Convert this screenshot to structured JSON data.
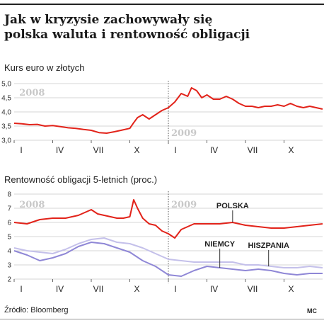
{
  "title": {
    "line1": "Jak w kryzysie zachowywały się",
    "line2": "polska waluta i rentowność obligacji"
  },
  "source": "Źródło: Bloomberg",
  "credit": "MC",
  "colors": {
    "polska": "#e2231a",
    "niemcy": "#8f87d6",
    "hiszpania": "#c4c0ea",
    "grid": "#d6d6d6",
    "year_label": "#c8c8c8"
  },
  "chart_data": [
    {
      "type": "line",
      "title": "Kurs euro w złotych",
      "x_ticks": [
        "I",
        "IV",
        "VII",
        "X",
        "I",
        "IV",
        "VII",
        "X"
      ],
      "x_range": [
        "2008-01",
        "2009-12"
      ],
      "year_labels": [
        "2008",
        "2009"
      ],
      "ylim": [
        3.0,
        5.0
      ],
      "yticks": [
        "3,0",
        "3,5",
        "4,0",
        "4,5",
        "5,0"
      ],
      "grid": true,
      "series": [
        {
          "name": "",
          "color": "#e2231a",
          "points": [
            [
              0,
              3.6
            ],
            [
              0.6,
              3.58
            ],
            [
              1.2,
              3.55
            ],
            [
              1.8,
              3.56
            ],
            [
              2.4,
              3.5
            ],
            [
              3.0,
              3.52
            ],
            [
              3.6,
              3.48
            ],
            [
              4.2,
              3.44
            ],
            [
              4.8,
              3.42
            ],
            [
              5.4,
              3.38
            ],
            [
              6.0,
              3.35
            ],
            [
              6.6,
              3.27
            ],
            [
              7.2,
              3.25
            ],
            [
              7.8,
              3.3
            ],
            [
              8.4,
              3.36
            ],
            [
              9.0,
              3.42
            ],
            [
              9.3,
              3.62
            ],
            [
              9.6,
              3.8
            ],
            [
              10.0,
              3.9
            ],
            [
              10.5,
              3.75
            ],
            [
              11.0,
              3.9
            ],
            [
              11.5,
              4.05
            ],
            [
              12.0,
              4.15
            ],
            [
              12.5,
              4.35
            ],
            [
              13.0,
              4.65
            ],
            [
              13.5,
              4.55
            ],
            [
              13.8,
              4.85
            ],
            [
              14.2,
              4.75
            ],
            [
              14.6,
              4.5
            ],
            [
              15.0,
              4.6
            ],
            [
              15.5,
              4.45
            ],
            [
              16.0,
              4.45
            ],
            [
              16.5,
              4.55
            ],
            [
              17.0,
              4.45
            ],
            [
              17.5,
              4.3
            ],
            [
              18.0,
              4.2
            ],
            [
              18.5,
              4.2
            ],
            [
              19.0,
              4.15
            ],
            [
              19.5,
              4.2
            ],
            [
              20.0,
              4.2
            ],
            [
              20.5,
              4.25
            ],
            [
              21.0,
              4.2
            ],
            [
              21.5,
              4.3
            ],
            [
              22.0,
              4.2
            ],
            [
              22.5,
              4.15
            ],
            [
              23.0,
              4.2
            ],
            [
              23.5,
              4.15
            ],
            [
              24.0,
              4.1
            ]
          ]
        }
      ]
    },
    {
      "type": "line",
      "title": "Rentowność obligacji 5-letnich (proc.)",
      "x_ticks": [
        "I",
        "IV",
        "VII",
        "X",
        "I",
        "IV",
        "VII",
        "X"
      ],
      "x_range": [
        "2008-01",
        "2009-12"
      ],
      "year_labels": [
        "2008",
        "2009"
      ],
      "ylim": [
        2,
        8
      ],
      "yticks": [
        "2",
        "3",
        "4",
        "5",
        "6",
        "7",
        "8"
      ],
      "grid": true,
      "series": [
        {
          "name": "POLSKA",
          "color": "#e2231a",
          "points": [
            [
              0,
              6.0
            ],
            [
              1.0,
              5.9
            ],
            [
              2.0,
              6.2
            ],
            [
              3.0,
              6.3
            ],
            [
              4.0,
              6.3
            ],
            [
              5.0,
              6.5
            ],
            [
              6.0,
              6.9
            ],
            [
              6.5,
              6.6
            ],
            [
              7.0,
              6.5
            ],
            [
              8.0,
              6.3
            ],
            [
              8.5,
              6.3
            ],
            [
              9.0,
              6.4
            ],
            [
              9.3,
              7.6
            ],
            [
              9.6,
              7.0
            ],
            [
              10.0,
              6.3
            ],
            [
              10.5,
              5.9
            ],
            [
              11.0,
              5.8
            ],
            [
              11.5,
              5.4
            ],
            [
              12.0,
              5.2
            ],
            [
              12.5,
              4.9
            ],
            [
              13.0,
              5.5
            ],
            [
              13.5,
              5.7
            ],
            [
              14.0,
              5.9
            ],
            [
              15.0,
              5.9
            ],
            [
              16.0,
              5.9
            ],
            [
              17.0,
              6.0
            ],
            [
              18.0,
              5.8
            ],
            [
              19.0,
              5.7
            ],
            [
              20.0,
              5.6
            ],
            [
              21.0,
              5.6
            ],
            [
              22.0,
              5.7
            ],
            [
              23.0,
              5.8
            ],
            [
              24.0,
              5.9
            ]
          ]
        },
        {
          "name": "HISZPANIA",
          "color": "#c4c0ea",
          "points": [
            [
              0,
              4.2
            ],
            [
              1.0,
              4.0
            ],
            [
              2.0,
              3.9
            ],
            [
              3.0,
              3.8
            ],
            [
              4.0,
              4.1
            ],
            [
              5.0,
              4.5
            ],
            [
              6.0,
              4.8
            ],
            [
              7.0,
              4.9
            ],
            [
              8.0,
              4.6
            ],
            [
              9.0,
              4.5
            ],
            [
              10.0,
              4.2
            ],
            [
              11.0,
              3.8
            ],
            [
              12.0,
              3.4
            ],
            [
              13.0,
              3.3
            ],
            [
              14.0,
              3.2
            ],
            [
              15.0,
              3.2
            ],
            [
              16.0,
              3.2
            ],
            [
              17.0,
              3.2
            ],
            [
              18.0,
              3.0
            ],
            [
              19.0,
              3.0
            ],
            [
              20.0,
              2.9
            ],
            [
              21.0,
              2.8
            ],
            [
              22.0,
              2.8
            ],
            [
              23.0,
              2.9
            ],
            [
              24.0,
              2.8
            ]
          ]
        },
        {
          "name": "NIEMCY",
          "color": "#8f87d6",
          "points": [
            [
              0,
              4.0
            ],
            [
              1.0,
              3.7
            ],
            [
              2.0,
              3.3
            ],
            [
              3.0,
              3.5
            ],
            [
              4.0,
              3.8
            ],
            [
              5.0,
              4.3
            ],
            [
              6.0,
              4.6
            ],
            [
              7.0,
              4.5
            ],
            [
              8.0,
              4.2
            ],
            [
              9.0,
              3.9
            ],
            [
              10.0,
              3.3
            ],
            [
              11.0,
              2.9
            ],
            [
              12.0,
              2.3
            ],
            [
              13.0,
              2.2
            ],
            [
              14.0,
              2.6
            ],
            [
              15.0,
              2.9
            ],
            [
              16.0,
              2.8
            ],
            [
              17.0,
              2.7
            ],
            [
              18.0,
              2.6
            ],
            [
              19.0,
              2.7
            ],
            [
              20.0,
              2.6
            ],
            [
              21.0,
              2.4
            ],
            [
              22.0,
              2.3
            ],
            [
              23.0,
              2.4
            ],
            [
              24.0,
              2.4
            ]
          ]
        }
      ]
    }
  ]
}
